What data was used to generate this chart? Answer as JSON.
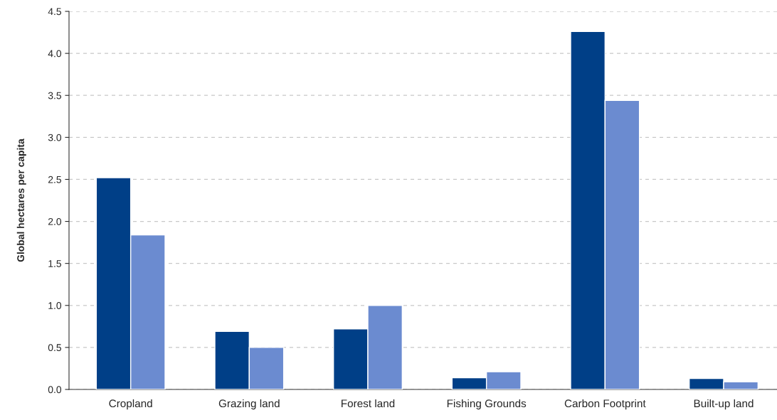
{
  "chart_data": {
    "type": "bar",
    "ylabel": "Global hectares per capita",
    "categories": [
      "Cropland",
      "Grazing land",
      "Forest land",
      "Fishing Grounds",
      "Carbon Footprint",
      "Built-up land"
    ],
    "series": [
      {
        "color": "#003f87",
        "values": [
          2.52,
          0.69,
          0.72,
          0.14,
          4.26,
          0.13
        ]
      },
      {
        "color": "#6b8bd0",
        "values": [
          1.84,
          0.5,
          1.0,
          0.21,
          3.44,
          0.09
        ]
      }
    ],
    "ylim": [
      0,
      4.5
    ],
    "yticks": [
      {
        "value": 0,
        "label": "0.0"
      },
      {
        "value": 0.5,
        "label": "0.5"
      },
      {
        "value": 1,
        "label": "1.0"
      },
      {
        "value": 1.5,
        "label": "1.5"
      },
      {
        "value": 2,
        "label": "2.0"
      },
      {
        "value": 2.5,
        "label": "2.5"
      },
      {
        "value": 3,
        "label": "3.0"
      },
      {
        "value": 3.5,
        "label": "3.5"
      },
      {
        "value": 4,
        "label": "4.0"
      },
      {
        "value": 4.5,
        "label": "4.5"
      }
    ],
    "grid": "y",
    "legend": false
  }
}
